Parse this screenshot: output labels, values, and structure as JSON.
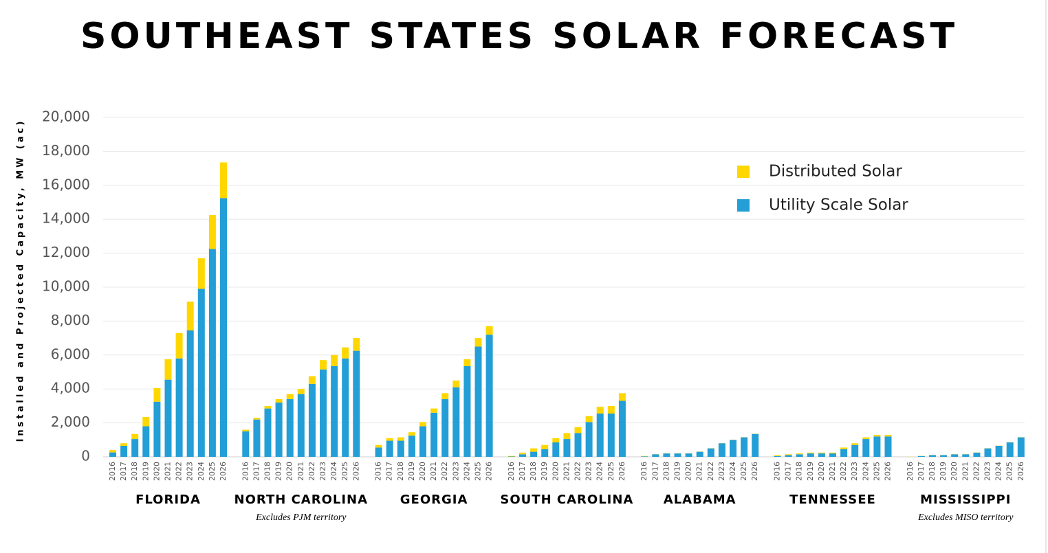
{
  "chart_data": {
    "type": "grouped-stacked-bar",
    "title": "SOUTHEAST STATES SOLAR FORECAST",
    "y_label": "Installed and Projected Capacity, MW (ac)",
    "ylim": [
      0,
      20000
    ],
    "yticks": [
      0,
      {
        "value": 2000,
        "label": "2,000"
      },
      {
        "value": 4000,
        "label": "4,000"
      },
      {
        "value": 6000,
        "label": "6,000"
      },
      {
        "value": 8000,
        "label": "8,000"
      },
      {
        "value": 10000,
        "label": "10,000"
      },
      {
        "value": 12000,
        "label": "12,000"
      },
      {
        "value": 14000,
        "label": "14,000"
      },
      {
        "value": 16000,
        "label": "16,000"
      },
      {
        "value": 18000,
        "label": "18,000"
      },
      {
        "value": 20000,
        "label": "20,000"
      }
    ],
    "grid": true,
    "categories": [
      "2016",
      "2017",
      "2018",
      "2019",
      "2020",
      "2021",
      "2022",
      "2023",
      "2024",
      "2025",
      "2026"
    ],
    "groups": [
      {
        "label": "FLORIDA"
      },
      {
        "label": "NORTH CAROLINA",
        "note": "Excludes PJM territory"
      },
      {
        "label": "GEORGIA"
      },
      {
        "label": "SOUTH CAROLINA"
      },
      {
        "label": "ALABAMA"
      },
      {
        "label": "TENNESSEE"
      },
      {
        "label": "MISSISSIPPI",
        "note": "Excludes MISO territory"
      }
    ],
    "series": [
      {
        "name": "Utility Scale Solar",
        "color": "#239ed6",
        "values": [
          [
            260,
            650,
            1050,
            1800,
            3250,
            4550,
            5800,
            7450,
            9900,
            12250,
            15250
          ],
          [
            1500,
            2200,
            2850,
            3200,
            3400,
            3700,
            4300,
            5150,
            5350,
            5800,
            6250
          ],
          [
            550,
            950,
            950,
            1250,
            1800,
            2600,
            3400,
            4100,
            5350,
            6500,
            7200
          ],
          [
            20,
            150,
            300,
            450,
            850,
            1050,
            1400,
            2050,
            2550,
            2550,
            3300
          ],
          [
            30,
            150,
            200,
            200,
            200,
            300,
            500,
            800,
            1000,
            1150,
            1350
          ],
          [
            50,
            100,
            150,
            200,
            200,
            200,
            450,
            700,
            1050,
            1200,
            1200
          ],
          [
            0,
            50,
            100,
            100,
            150,
            150,
            250,
            500,
            650,
            850,
            1150
          ]
        ]
      },
      {
        "name": "Distributed Solar",
        "color": "#ffd700",
        "values": [
          [
            140,
            150,
            300,
            550,
            800,
            1200,
            1500,
            1700,
            1800,
            2000,
            2100
          ],
          [
            100,
            100,
            150,
            200,
            300,
            300,
            450,
            550,
            650,
            650,
            750
          ],
          [
            150,
            150,
            200,
            200,
            250,
            250,
            350,
            400,
            400,
            500,
            500
          ],
          [
            30,
            100,
            200,
            250,
            250,
            350,
            350,
            350,
            400,
            450,
            450
          ],
          [
            20,
            10,
            10,
            10,
            10,
            10,
            10,
            10,
            10,
            10,
            10
          ],
          [
            50,
            50,
            50,
            50,
            50,
            50,
            100,
            100,
            100,
            100,
            100
          ],
          [
            10,
            10,
            10,
            10,
            10,
            10,
            10,
            10,
            10,
            10,
            10
          ]
        ]
      }
    ]
  }
}
